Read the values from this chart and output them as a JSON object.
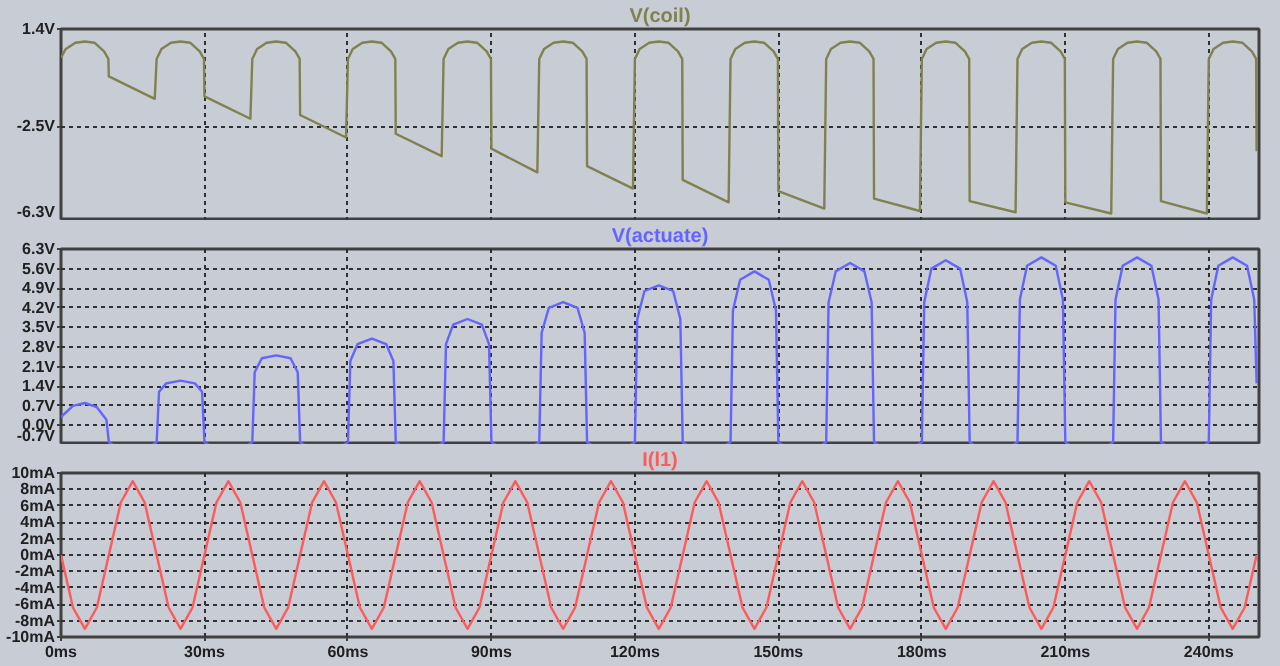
{
  "chart_data": [
    {
      "type": "line",
      "title": "V(coil)",
      "xlim": [
        0,
        250.5
      ],
      "ylim": [
        -6.3,
        1.4
      ],
      "grid": true,
      "tick_labels": "y",
      "xticks": [
        {
          "value": 0,
          "label": null
        },
        {
          "value": 30,
          "label": null
        },
        {
          "value": 60,
          "label": null
        },
        {
          "value": 90,
          "label": null
        },
        {
          "value": 120,
          "label": null
        },
        {
          "value": 150,
          "label": null
        },
        {
          "value": 180,
          "label": null
        },
        {
          "value": 210,
          "label": null
        },
        {
          "value": 240,
          "label": null
        }
      ],
      "yticks": [
        {
          "value": -6.3,
          "label": "-6.3V"
        },
        {
          "value": -2.5,
          "label": "-2.5V"
        },
        {
          "value": 1.4,
          "label": "1.4V"
        }
      ],
      "x": [
        0,
        1,
        3,
        5,
        7,
        9,
        9.9,
        10,
        19.6,
        20,
        21,
        23,
        25,
        27,
        29,
        29.9,
        30,
        39.6,
        40,
        41,
        43,
        45,
        47,
        49,
        49.9,
        50,
        59.6,
        60,
        61,
        63,
        65,
        67,
        69,
        69.9,
        70,
        79.6,
        80,
        81,
        83,
        85,
        87,
        89,
        89.9,
        90,
        99.6,
        100,
        101,
        103,
        105,
        107,
        109,
        109.9,
        110,
        119.6,
        120,
        121,
        123,
        125,
        127,
        129,
        129.9,
        130,
        139.6,
        140,
        141,
        143,
        145,
        147,
        149,
        149.9,
        150,
        159.6,
        160,
        161,
        163,
        165,
        167,
        169,
        169.9,
        170,
        179.6,
        180,
        181,
        183,
        185,
        187,
        189,
        189.9,
        190,
        199.6,
        200,
        201,
        203,
        205,
        207,
        209,
        209.9,
        210,
        219.6,
        220,
        221,
        223,
        225,
        227,
        229,
        229.9,
        230,
        239.6,
        240,
        241,
        243,
        245,
        247,
        249,
        249.9,
        250
      ],
      "series": [
        {
          "color": "#808050",
          "values": [
            0.25,
            0.6,
            0.85,
            0.9,
            0.85,
            0.5,
            0.2,
            -0.5,
            -1.4,
            0.2,
            0.6,
            0.85,
            0.9,
            0.85,
            0.5,
            0.2,
            -1.3,
            -2.2,
            0.2,
            0.6,
            0.85,
            0.9,
            0.85,
            0.5,
            0.2,
            -2.05,
            -2.95,
            0.2,
            0.6,
            0.85,
            0.9,
            0.85,
            0.5,
            0.2,
            -2.8,
            -3.7,
            0.2,
            0.6,
            0.85,
            0.9,
            0.85,
            0.5,
            0.2,
            -3.4,
            -4.35,
            0.2,
            0.6,
            0.85,
            0.9,
            0.85,
            0.5,
            0.2,
            -4.1,
            -5.0,
            0.2,
            0.6,
            0.85,
            0.9,
            0.85,
            0.5,
            0.2,
            -4.65,
            -5.55,
            0.2,
            0.6,
            0.85,
            0.9,
            0.85,
            0.5,
            0.2,
            -5.1,
            -5.8,
            0.2,
            0.6,
            0.85,
            0.9,
            0.85,
            0.5,
            0.2,
            -5.4,
            -5.9,
            0.2,
            0.6,
            0.85,
            0.9,
            0.85,
            0.5,
            0.2,
            -5.5,
            -5.95,
            0.2,
            0.6,
            0.85,
            0.9,
            0.85,
            0.5,
            0.2,
            -5.55,
            -6.0,
            0.2,
            0.6,
            0.85,
            0.9,
            0.85,
            0.5,
            0.2,
            -5.5,
            -6.0,
            0.2,
            0.6,
            0.85,
            0.9,
            0.85,
            0.5,
            0.2,
            -3.5
          ]
        }
      ]
    },
    {
      "type": "line",
      "title": "V(actuate)",
      "xlim": [
        0,
        250.5
      ],
      "ylim": [
        -0.7,
        6.3
      ],
      "grid": true,
      "tick_labels": "y",
      "xticks": [
        {
          "value": 0,
          "label": null
        },
        {
          "value": 30,
          "label": null
        },
        {
          "value": 60,
          "label": null
        },
        {
          "value": 90,
          "label": null
        },
        {
          "value": 120,
          "label": null
        },
        {
          "value": 150,
          "label": null
        },
        {
          "value": 180,
          "label": null
        },
        {
          "value": 210,
          "label": null
        },
        {
          "value": 240,
          "label": null
        }
      ],
      "yticks": [
        {
          "value": -0.7,
          "label": "-0.7V"
        },
        {
          "value": 0,
          "label": "0.0V"
        },
        {
          "value": 0.7,
          "label": "0.7V"
        },
        {
          "value": 1.4,
          "label": "1.4V"
        },
        {
          "value": 2.1,
          "label": "2.1V"
        },
        {
          "value": 2.8,
          "label": "2.8V"
        },
        {
          "value": 3.5,
          "label": "3.5V"
        },
        {
          "value": 4.2,
          "label": "4.2V"
        },
        {
          "value": 4.9,
          "label": "4.9V"
        },
        {
          "value": 5.6,
          "label": "5.6V"
        },
        {
          "value": 6.3,
          "label": "6.3V"
        }
      ],
      "x": [
        0,
        2.5,
        5,
        7.5,
        9.5,
        10,
        11,
        19,
        20,
        20.5,
        22,
        25,
        28,
        29.5,
        30,
        31,
        39,
        40,
        40.5,
        42,
        45,
        48,
        49.5,
        50,
        51,
        59,
        60,
        60.5,
        62,
        65,
        68,
        69.5,
        70,
        71,
        79,
        80,
        80.5,
        82,
        85,
        88,
        89.5,
        90,
        91,
        99,
        100,
        100.5,
        102,
        105,
        108,
        109.5,
        110,
        111,
        119,
        120,
        120.5,
        122,
        125,
        128,
        129.5,
        130,
        131,
        139,
        140,
        140.5,
        142,
        145,
        148,
        149.5,
        150,
        151,
        159,
        160,
        160.5,
        162,
        165,
        168,
        169.5,
        170,
        171,
        179,
        180,
        180.5,
        182,
        185,
        188,
        189.5,
        190,
        191,
        199,
        200,
        200.5,
        202,
        205,
        208,
        209.5,
        210,
        211,
        219,
        220,
        220.5,
        222,
        225,
        228,
        229.5,
        230,
        231,
        239,
        240,
        240.5,
        242,
        245,
        248,
        249.5,
        250
      ],
      "series": [
        {
          "color": "#6464ff",
          "values": [
            0.3,
            0.7,
            0.8,
            0.65,
            0.2,
            -0.6,
            -0.7,
            -0.7,
            -0.6,
            1.2,
            1.5,
            1.6,
            1.5,
            1.2,
            -0.6,
            -0.7,
            -0.7,
            -0.6,
            1.9,
            2.4,
            2.5,
            2.4,
            1.9,
            -0.6,
            -0.7,
            -0.7,
            -0.6,
            2.3,
            2.9,
            3.1,
            2.9,
            2.3,
            -0.6,
            -0.7,
            -0.7,
            -0.6,
            2.9,
            3.6,
            3.8,
            3.6,
            2.9,
            -0.6,
            -0.7,
            -0.7,
            -0.6,
            3.3,
            4.2,
            4.4,
            4.2,
            3.3,
            -0.6,
            -0.7,
            -0.7,
            -0.6,
            3.8,
            4.8,
            5.0,
            4.8,
            3.8,
            -0.6,
            -0.7,
            -0.7,
            -0.6,
            4.1,
            5.2,
            5.5,
            5.2,
            4.1,
            -0.6,
            -0.7,
            -0.7,
            -0.6,
            4.4,
            5.5,
            5.8,
            5.5,
            4.4,
            -0.6,
            -0.7,
            -0.7,
            -0.6,
            4.4,
            5.6,
            5.9,
            5.6,
            4.4,
            -0.6,
            -0.7,
            -0.7,
            -0.6,
            4.5,
            5.7,
            6.0,
            5.7,
            4.5,
            -0.6,
            -0.7,
            -0.7,
            -0.6,
            4.5,
            5.7,
            6.0,
            5.7,
            4.5,
            -0.6,
            -0.7,
            -0.7,
            -0.6,
            4.5,
            5.7,
            6.0,
            5.7,
            4.5,
            1.5
          ]
        }
      ]
    },
    {
      "type": "line",
      "title": "I(l1)",
      "xlim": [
        0,
        250.5
      ],
      "ylim": [
        -10,
        10
      ],
      "grid": true,
      "xticks": [
        {
          "value": 0,
          "label": "0ms"
        },
        {
          "value": 30,
          "label": "30ms"
        },
        {
          "value": 60,
          "label": "60ms"
        },
        {
          "value": 90,
          "label": "90ms"
        },
        {
          "value": 120,
          "label": "120ms"
        },
        {
          "value": 150,
          "label": "150ms"
        },
        {
          "value": 180,
          "label": "180ms"
        },
        {
          "value": 210,
          "label": "210ms"
        },
        {
          "value": 240,
          "label": "240ms"
        }
      ],
      "yticks": [
        {
          "value": -10,
          "label": "-10mA"
        },
        {
          "value": -8,
          "label": "-8mA"
        },
        {
          "value": -6,
          "label": "-6mA"
        },
        {
          "value": -4,
          "label": "-4mA"
        },
        {
          "value": -2,
          "label": "-2mA"
        },
        {
          "value": 0,
          "label": "0mA"
        },
        {
          "value": 2,
          "label": "2mA"
        },
        {
          "value": 4,
          "label": "4mA"
        },
        {
          "value": 6,
          "label": "6mA"
        },
        {
          "value": 8,
          "label": "8mA"
        },
        {
          "value": 10,
          "label": "10mA"
        }
      ],
      "x": [
        0,
        2.5,
        5,
        7.5,
        10,
        12.5,
        15,
        17.5,
        20,
        22.5,
        25,
        27.5,
        30,
        32.5,
        35,
        37.5,
        40,
        42.5,
        45,
        47.5,
        50,
        52.5,
        55,
        57.5,
        60,
        62.5,
        65,
        67.5,
        70,
        72.5,
        75,
        77.5,
        80,
        82.5,
        85,
        87.5,
        90,
        92.5,
        95,
        97.5,
        100,
        102.5,
        105,
        107.5,
        110,
        112.5,
        115,
        117.5,
        120,
        122.5,
        125,
        127.5,
        130,
        132.5,
        135,
        137.5,
        140,
        142.5,
        145,
        147.5,
        150,
        152.5,
        155,
        157.5,
        160,
        162.5,
        165,
        167.5,
        170,
        172.5,
        175,
        177.5,
        180,
        182.5,
        185,
        187.5,
        190,
        192.5,
        195,
        197.5,
        200,
        202.5,
        205,
        207.5,
        210,
        212.5,
        215,
        217.5,
        220,
        222.5,
        225,
        227.5,
        230,
        232.5,
        235,
        237.5,
        240,
        242.5,
        245,
        247.5,
        250
      ],
      "series": [
        {
          "color": "#ff5a5a",
          "values": [
            0,
            -6.4,
            -9,
            -6.4,
            0,
            6.4,
            9,
            6.4,
            0,
            -6.4,
            -9,
            -6.4,
            0,
            6.4,
            9,
            6.4,
            0,
            -6.4,
            -9,
            -6.4,
            0,
            6.4,
            9,
            6.4,
            0,
            -6.4,
            -9,
            -6.4,
            0,
            6.4,
            9,
            6.4,
            0,
            -6.4,
            -9,
            -6.4,
            0,
            6.4,
            9,
            6.4,
            0,
            -6.4,
            -9,
            -6.4,
            0,
            6.4,
            9,
            6.4,
            0,
            -6.4,
            -9,
            -6.4,
            0,
            6.4,
            9,
            6.4,
            0,
            -6.4,
            -9,
            -6.4,
            0,
            6.4,
            9,
            6.4,
            0,
            -6.4,
            -9,
            -6.4,
            0,
            6.4,
            9,
            6.4,
            0,
            -6.4,
            -9,
            -6.4,
            0,
            6.4,
            9,
            6.4,
            0,
            -6.4,
            -9,
            -6.4,
            0,
            6.4,
            9,
            6.4,
            0,
            -6.4,
            -9,
            -6.4,
            0,
            6.4,
            9,
            6.4,
            0,
            -6.4,
            -9,
            -6.4,
            0
          ]
        }
      ]
    }
  ]
}
